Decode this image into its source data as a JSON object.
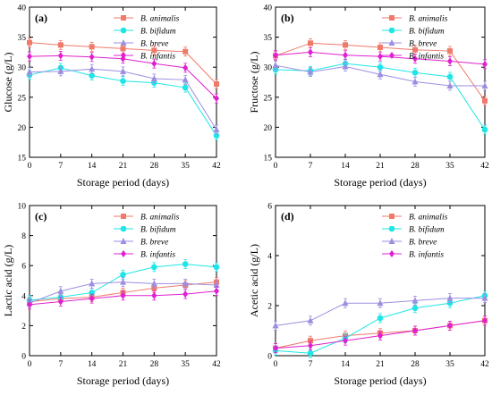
{
  "colors": {
    "B. animalis": "#f07a6a",
    "B. bifidum": "#1ee6e6",
    "B. breve": "#9d8ee0",
    "B. infantis": "#e020d0"
  },
  "chart_data": [
    {
      "type": "line",
      "panel_label": "(a)",
      "xlabel": "Storage period (days)",
      "ylabel": "Glucose (g/L)",
      "x": [
        0,
        7,
        14,
        21,
        28,
        35,
        42
      ],
      "xticks": [
        0,
        7,
        14,
        21,
        28,
        35,
        42
      ],
      "xlim": [
        0,
        42
      ],
      "ylim": [
        15,
        40
      ],
      "yticks": [
        15,
        20,
        25,
        30,
        35,
        40
      ],
      "legend_position": "top-right",
      "series": [
        {
          "name": "B. animalis",
          "marker": "square",
          "values": [
            34.1,
            33.7,
            33.4,
            33.1,
            32.8,
            32.6,
            27.2
          ]
        },
        {
          "name": "B. bifidum",
          "marker": "circle",
          "values": [
            28.7,
            29.9,
            28.6,
            27.7,
            27.4,
            26.6,
            18.6
          ]
        },
        {
          "name": "B. breve",
          "marker": "triangle",
          "values": [
            29.2,
            29.3,
            29.7,
            29.3,
            28.1,
            27.9,
            19.6
          ]
        },
        {
          "name": "B. infantis",
          "marker": "diamond",
          "values": [
            31.8,
            31.9,
            31.7,
            31.4,
            30.6,
            29.9,
            24.8
          ]
        }
      ]
    },
    {
      "type": "line",
      "panel_label": "(b)",
      "xlabel": "Storage period (days)",
      "ylabel": "Fructose (g/L)",
      "x": [
        0,
        7,
        14,
        21,
        28,
        35,
        42
      ],
      "xticks": [
        0,
        7,
        14,
        21,
        28,
        35,
        42
      ],
      "xlim": [
        0,
        42
      ],
      "ylim": [
        15,
        40
      ],
      "yticks": [
        15,
        20,
        25,
        30,
        35,
        40
      ],
      "legend_position": "top-right",
      "series": [
        {
          "name": "B. animalis",
          "marker": "square",
          "values": [
            31.9,
            34.0,
            33.7,
            33.3,
            32.9,
            32.7,
            24.4
          ]
        },
        {
          "name": "B. bifidum",
          "marker": "circle",
          "values": [
            29.6,
            29.4,
            30.6,
            30.0,
            29.1,
            28.4,
            19.6
          ]
        },
        {
          "name": "B. breve",
          "marker": "triangle",
          "values": [
            30.3,
            29.2,
            30.1,
            28.8,
            27.6,
            26.9,
            26.9
          ]
        },
        {
          "name": "B. infantis",
          "marker": "diamond",
          "values": [
            32.0,
            32.5,
            32.0,
            31.8,
            31.4,
            31.0,
            30.5
          ]
        }
      ]
    },
    {
      "type": "line",
      "panel_label": "(c)",
      "xlabel": "Storage period (days)",
      "ylabel": "Lactic acid (g/L)",
      "x": [
        0,
        7,
        14,
        21,
        28,
        35,
        42
      ],
      "xticks": [
        0,
        7,
        14,
        21,
        28,
        35,
        42
      ],
      "xlim": [
        0,
        42
      ],
      "ylim": [
        0,
        10
      ],
      "yticks": [
        0,
        2,
        4,
        6,
        8,
        10
      ],
      "legend_position": "top-right",
      "series": [
        {
          "name": "B. animalis",
          "marker": "square",
          "values": [
            3.6,
            3.8,
            3.9,
            4.2,
            4.5,
            4.7,
            4.9
          ]
        },
        {
          "name": "B. bifidum",
          "marker": "circle",
          "values": [
            3.7,
            3.9,
            4.2,
            5.4,
            5.9,
            6.1,
            5.9
          ]
        },
        {
          "name": "B. breve",
          "marker": "triangle",
          "values": [
            3.5,
            4.3,
            4.8,
            4.9,
            4.8,
            4.8,
            4.7
          ]
        },
        {
          "name": "B. infantis",
          "marker": "diamond",
          "values": [
            3.4,
            3.6,
            3.8,
            4.0,
            4.0,
            4.1,
            4.3
          ]
        }
      ]
    },
    {
      "type": "line",
      "panel_label": "(d)",
      "xlabel": "Storage period (days)",
      "ylabel": "Acetic acid (g/L)",
      "x": [
        0,
        7,
        14,
        21,
        28,
        35,
        42
      ],
      "xticks": [
        0,
        7,
        14,
        21,
        28,
        35,
        42
      ],
      "xlim": [
        0,
        42
      ],
      "ylim": [
        0,
        6
      ],
      "yticks": [
        0,
        2,
        4,
        6
      ],
      "legend_position": "top-right",
      "series": [
        {
          "name": "B. animalis",
          "marker": "square",
          "values": [
            0.3,
            0.6,
            0.8,
            0.9,
            1.0,
            1.2,
            1.4
          ]
        },
        {
          "name": "B. bifidum",
          "marker": "circle",
          "values": [
            0.2,
            0.1,
            0.7,
            1.5,
            1.9,
            2.1,
            2.4
          ]
        },
        {
          "name": "B. breve",
          "marker": "triangle",
          "values": [
            1.2,
            1.4,
            2.1,
            2.1,
            2.2,
            2.3,
            2.3
          ]
        },
        {
          "name": "B. infantis",
          "marker": "diamond",
          "values": [
            0.3,
            0.4,
            0.6,
            0.8,
            1.0,
            1.2,
            1.4
          ]
        }
      ]
    }
  ]
}
